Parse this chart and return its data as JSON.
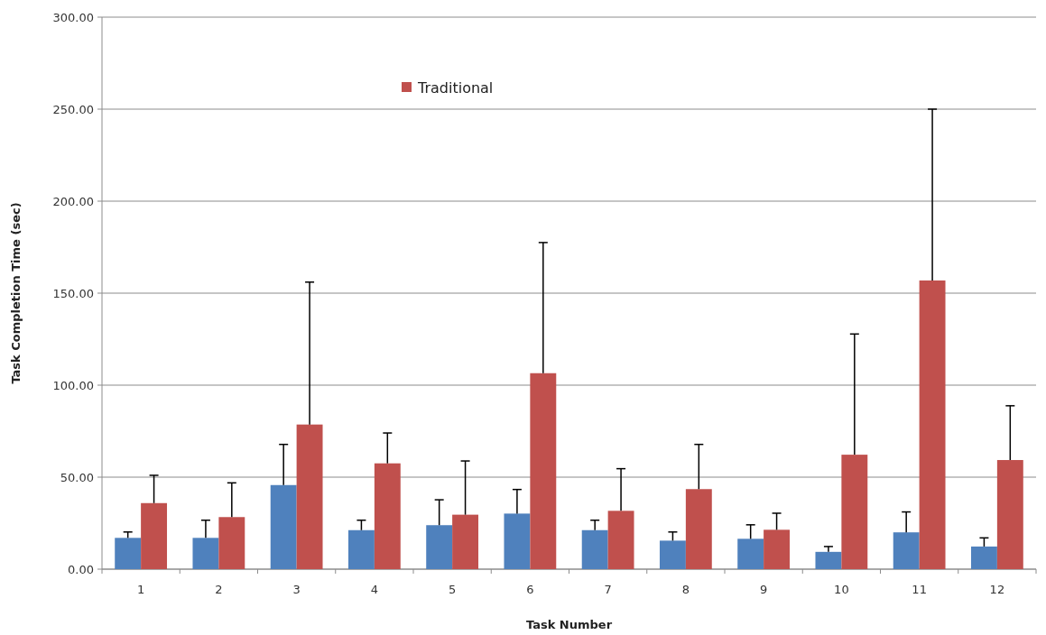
{
  "chart_data": {
    "type": "bar",
    "xlabel": "Task Number",
    "ylabel": "Task Completion Time (sec)",
    "categories": [
      "1",
      "2",
      "3",
      "4",
      "5",
      "6",
      "7",
      "8",
      "9",
      "10",
      "11",
      "12"
    ],
    "series": [
      {
        "color": "#4f81bd",
        "values": [
          17,
          17,
          45.7,
          21.2,
          23.9,
          30.2,
          21.2,
          15.5,
          16.5,
          9.4,
          20,
          12.3
        ],
        "errors": [
          [
            17,
            20.2
          ],
          [
            17,
            26.6
          ],
          [
            45.7,
            67.8
          ],
          [
            21.2,
            26.6
          ],
          [
            23.9,
            37.7
          ],
          [
            30.2,
            43.3
          ],
          [
            21.2,
            26.6
          ],
          [
            15.5,
            20.2
          ],
          [
            16.5,
            24.1
          ],
          [
            9.4,
            12.3
          ],
          [
            20,
            31.1
          ],
          [
            12.3,
            17
          ]
        ]
      },
      {
        "name": "Traditional",
        "color": "#c0504d",
        "values": [
          35.9,
          28.3,
          78.6,
          57.5,
          29.6,
          106.5,
          31.7,
          43.5,
          21.4,
          62.2,
          156.9,
          59.3
        ],
        "errors": [
          [
            35.9,
            51
          ],
          [
            28.3,
            46.9
          ],
          [
            78.6,
            156
          ],
          [
            57.5,
            74
          ],
          [
            29.6,
            58.8
          ],
          [
            106.5,
            177.5
          ],
          [
            31.7,
            54.6
          ],
          [
            43.5,
            67.8
          ],
          [
            21.4,
            30.4
          ],
          [
            62.2,
            127.8
          ],
          [
            156.9,
            250
          ],
          [
            59.3,
            88.8
          ]
        ]
      }
    ],
    "ylim": [
      0,
      300
    ],
    "yticks": [
      {
        "value": 0,
        "label": "0.00"
      },
      {
        "value": 50,
        "label": "50.00"
      },
      {
        "value": 100,
        "label": "100.00"
      },
      {
        "value": 150,
        "label": "150.00"
      },
      {
        "value": 200,
        "label": "200.00"
      },
      {
        "value": 250,
        "label": "250.00"
      },
      {
        "value": 300,
        "label": "300.00"
      }
    ],
    "grid": "y",
    "legend": "top"
  }
}
